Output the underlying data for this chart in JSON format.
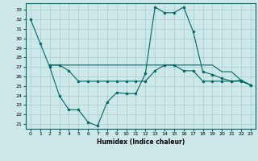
{
  "title": "",
  "xlabel": "Humidex (Indice chaleur)",
  "bg_color": "#cce8e8",
  "line_color": "#006666",
  "grid_color": "#aacccc",
  "ylim": [
    20.5,
    33.7
  ],
  "xlim": [
    -0.5,
    23.5
  ],
  "yticks": [
    21,
    22,
    23,
    24,
    25,
    26,
    27,
    28,
    29,
    30,
    31,
    32,
    33
  ],
  "xticks": [
    0,
    1,
    2,
    3,
    4,
    5,
    6,
    7,
    8,
    9,
    10,
    11,
    12,
    13,
    14,
    15,
    16,
    17,
    18,
    19,
    20,
    21,
    22,
    23
  ],
  "line1_x": [
    0,
    1,
    2,
    3,
    4,
    5,
    6,
    7,
    8,
    9,
    10,
    11,
    12,
    13,
    14,
    15,
    16,
    17,
    18,
    19,
    20,
    21,
    22,
    23
  ],
  "line1_y": [
    32.0,
    29.5,
    27.0,
    24.0,
    22.5,
    22.5,
    21.2,
    20.8,
    23.3,
    24.3,
    24.2,
    24.2,
    26.3,
    33.3,
    32.7,
    32.7,
    33.3,
    30.7,
    26.5,
    26.2,
    25.8,
    25.5,
    25.6,
    25.1
  ],
  "line2_x": [
    2,
    3,
    4,
    5,
    6,
    7,
    8,
    9,
    10,
    11,
    12,
    13,
    14,
    15,
    16,
    17,
    18,
    19,
    20,
    21,
    22,
    23
  ],
  "line2_y": [
    27.2,
    27.2,
    26.6,
    25.5,
    25.5,
    25.5,
    25.5,
    25.5,
    25.5,
    25.5,
    25.5,
    26.6,
    27.2,
    27.2,
    26.6,
    26.6,
    25.5,
    25.5,
    25.5,
    25.5,
    25.5,
    25.1
  ],
  "line3_x": [
    2,
    3,
    4,
    5,
    6,
    7,
    8,
    9,
    10,
    11,
    12,
    13,
    14,
    15,
    16,
    17,
    18,
    19,
    20,
    21,
    22,
    23
  ],
  "line3_y": [
    27.2,
    27.2,
    27.2,
    27.2,
    27.2,
    27.2,
    27.2,
    27.2,
    27.2,
    27.2,
    27.2,
    27.2,
    27.2,
    27.2,
    27.2,
    27.2,
    27.2,
    27.2,
    26.5,
    26.5,
    25.6,
    25.1
  ]
}
